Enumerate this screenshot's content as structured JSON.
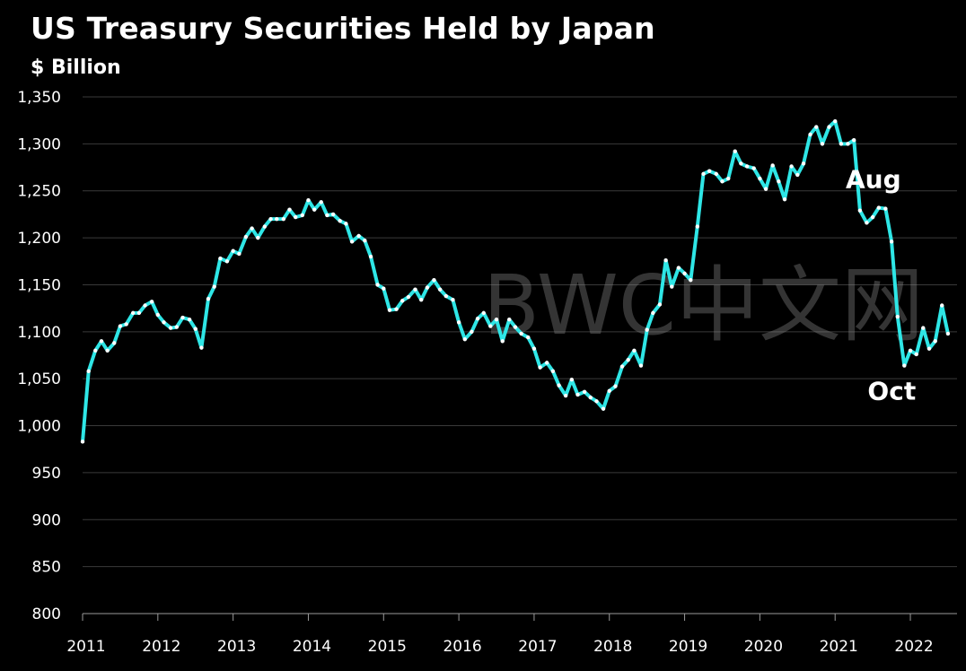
{
  "chart_data": {
    "type": "line",
    "title": "US Treasury Securities Held by Japan",
    "ylabel": "$ Billion",
    "xlabel": "",
    "ylim": [
      800,
      1350
    ],
    "xlim": [
      2011.0,
      2022.62
    ],
    "yticks": [
      800,
      850,
      900,
      950,
      1000,
      1050,
      1100,
      1150,
      1200,
      1250,
      1300,
      1350
    ],
    "xticks": [
      2011,
      2012,
      2013,
      2014,
      2015,
      2016,
      2017,
      2018,
      2019,
      2020,
      2021,
      2022
    ],
    "ytick_labels": [
      "800",
      "850",
      "900",
      "950",
      "1,000",
      "1,050",
      "1,100",
      "1,150",
      "1,200",
      "1,250",
      "1,300",
      "1,350"
    ],
    "xtick_labels": [
      "2011",
      "2012",
      "2013",
      "2014",
      "2015",
      "2016",
      "2017",
      "2018",
      "2019",
      "2020",
      "2021",
      "2022"
    ],
    "grid": true,
    "line_color": "#2ee6e6",
    "marker_color": "#ffffff",
    "series": [
      {
        "values": [
          [
            2011.0,
            983
          ],
          [
            2011.08,
            1058
          ],
          [
            2011.17,
            1080
          ],
          [
            2011.25,
            1090
          ],
          [
            2011.33,
            1080
          ],
          [
            2011.42,
            1088
          ],
          [
            2011.5,
            1106
          ],
          [
            2011.58,
            1108
          ],
          [
            2011.67,
            1120
          ],
          [
            2011.75,
            1120
          ],
          [
            2011.83,
            1128
          ],
          [
            2011.92,
            1132
          ],
          [
            2012.0,
            1118
          ],
          [
            2012.08,
            1110
          ],
          [
            2012.17,
            1104
          ],
          [
            2012.25,
            1105
          ],
          [
            2012.33,
            1115
          ],
          [
            2012.42,
            1113
          ],
          [
            2012.5,
            1103
          ],
          [
            2012.58,
            1083
          ],
          [
            2012.67,
            1135
          ],
          [
            2012.75,
            1148
          ],
          [
            2012.83,
            1178
          ],
          [
            2012.92,
            1175
          ],
          [
            2013.0,
            1186
          ],
          [
            2013.08,
            1183
          ],
          [
            2013.17,
            1201
          ],
          [
            2013.25,
            1210
          ],
          [
            2013.33,
            1200
          ],
          [
            2013.42,
            1212
          ],
          [
            2013.5,
            1220
          ],
          [
            2013.58,
            1220
          ],
          [
            2013.67,
            1220
          ],
          [
            2013.75,
            1230
          ],
          [
            2013.83,
            1222
          ],
          [
            2013.92,
            1224
          ],
          [
            2014.0,
            1240
          ],
          [
            2014.08,
            1230
          ],
          [
            2014.17,
            1238
          ],
          [
            2014.25,
            1224
          ],
          [
            2014.33,
            1225
          ],
          [
            2014.42,
            1218
          ],
          [
            2014.5,
            1215
          ],
          [
            2014.58,
            1196
          ],
          [
            2014.67,
            1202
          ],
          [
            2014.75,
            1197
          ],
          [
            2014.83,
            1180
          ],
          [
            2014.92,
            1150
          ],
          [
            2015.0,
            1146
          ],
          [
            2015.08,
            1123
          ],
          [
            2015.17,
            1124
          ],
          [
            2015.25,
            1133
          ],
          [
            2015.33,
            1137
          ],
          [
            2015.42,
            1145
          ],
          [
            2015.5,
            1134
          ],
          [
            2015.58,
            1147
          ],
          [
            2015.67,
            1155
          ],
          [
            2015.75,
            1145
          ],
          [
            2015.83,
            1138
          ],
          [
            2015.92,
            1134
          ],
          [
            2016.0,
            1110
          ],
          [
            2016.08,
            1092
          ],
          [
            2016.17,
            1100
          ],
          [
            2016.25,
            1114
          ],
          [
            2016.33,
            1120
          ],
          [
            2016.42,
            1106
          ],
          [
            2016.5,
            1113
          ],
          [
            2016.58,
            1090
          ],
          [
            2016.67,
            1113
          ],
          [
            2016.75,
            1105
          ],
          [
            2016.83,
            1098
          ],
          [
            2016.92,
            1094
          ],
          [
            2017.0,
            1082
          ],
          [
            2017.08,
            1062
          ],
          [
            2017.17,
            1067
          ],
          [
            2017.25,
            1058
          ],
          [
            2017.33,
            1043
          ],
          [
            2017.42,
            1032
          ],
          [
            2017.5,
            1049
          ],
          [
            2017.58,
            1033
          ],
          [
            2017.67,
            1036
          ],
          [
            2017.75,
            1030
          ],
          [
            2017.83,
            1026
          ],
          [
            2017.92,
            1018
          ],
          [
            2018.0,
            1037
          ],
          [
            2018.08,
            1042
          ],
          [
            2018.17,
            1063
          ],
          [
            2018.25,
            1070
          ],
          [
            2018.33,
            1080
          ],
          [
            2018.42,
            1064
          ],
          [
            2018.5,
            1102
          ],
          [
            2018.58,
            1120
          ],
          [
            2018.67,
            1129
          ],
          [
            2018.75,
            1176
          ],
          [
            2018.83,
            1148
          ],
          [
            2018.92,
            1168
          ],
          [
            2019.0,
            1162
          ],
          [
            2019.08,
            1155
          ],
          [
            2019.17,
            1212
          ],
          [
            2019.25,
            1268
          ],
          [
            2019.33,
            1271
          ],
          [
            2019.42,
            1268
          ],
          [
            2019.5,
            1260
          ],
          [
            2019.58,
            1263
          ],
          [
            2019.67,
            1292
          ],
          [
            2019.75,
            1279
          ],
          [
            2019.83,
            1276
          ],
          [
            2019.92,
            1274
          ],
          [
            2020.0,
            1263
          ],
          [
            2020.08,
            1252
          ],
          [
            2020.17,
            1277
          ],
          [
            2020.25,
            1260
          ],
          [
            2020.33,
            1241
          ],
          [
            2020.42,
            1276
          ],
          [
            2020.5,
            1267
          ],
          [
            2020.58,
            1279
          ],
          [
            2020.67,
            1310
          ],
          [
            2020.75,
            1318
          ],
          [
            2020.83,
            1300
          ],
          [
            2020.92,
            1318
          ],
          [
            2021.0,
            1324
          ],
          [
            2021.08,
            1300
          ],
          [
            2021.17,
            1300
          ],
          [
            2021.25,
            1304
          ],
          [
            2021.33,
            1229
          ],
          [
            2021.42,
            1216
          ],
          [
            2021.5,
            1222
          ],
          [
            2021.58,
            1232
          ],
          [
            2021.67,
            1231
          ],
          [
            2021.75,
            1196
          ],
          [
            2021.83,
            1116
          ],
          [
            2021.92,
            1064
          ],
          [
            2022.0,
            1080
          ],
          [
            2022.08,
            1076
          ],
          [
            2022.17,
            1104
          ],
          [
            2022.25,
            1082
          ],
          [
            2022.33,
            1090
          ],
          [
            2022.42,
            1128
          ],
          [
            2022.5,
            1098
          ]
        ]
      }
    ],
    "annotations": [
      {
        "text": "Aug",
        "x": 2021.58,
        "y": 1232
      },
      {
        "text": "Oct",
        "x": 2021.92,
        "y": 1064
      }
    ]
  },
  "watermark": "BWC中文网"
}
